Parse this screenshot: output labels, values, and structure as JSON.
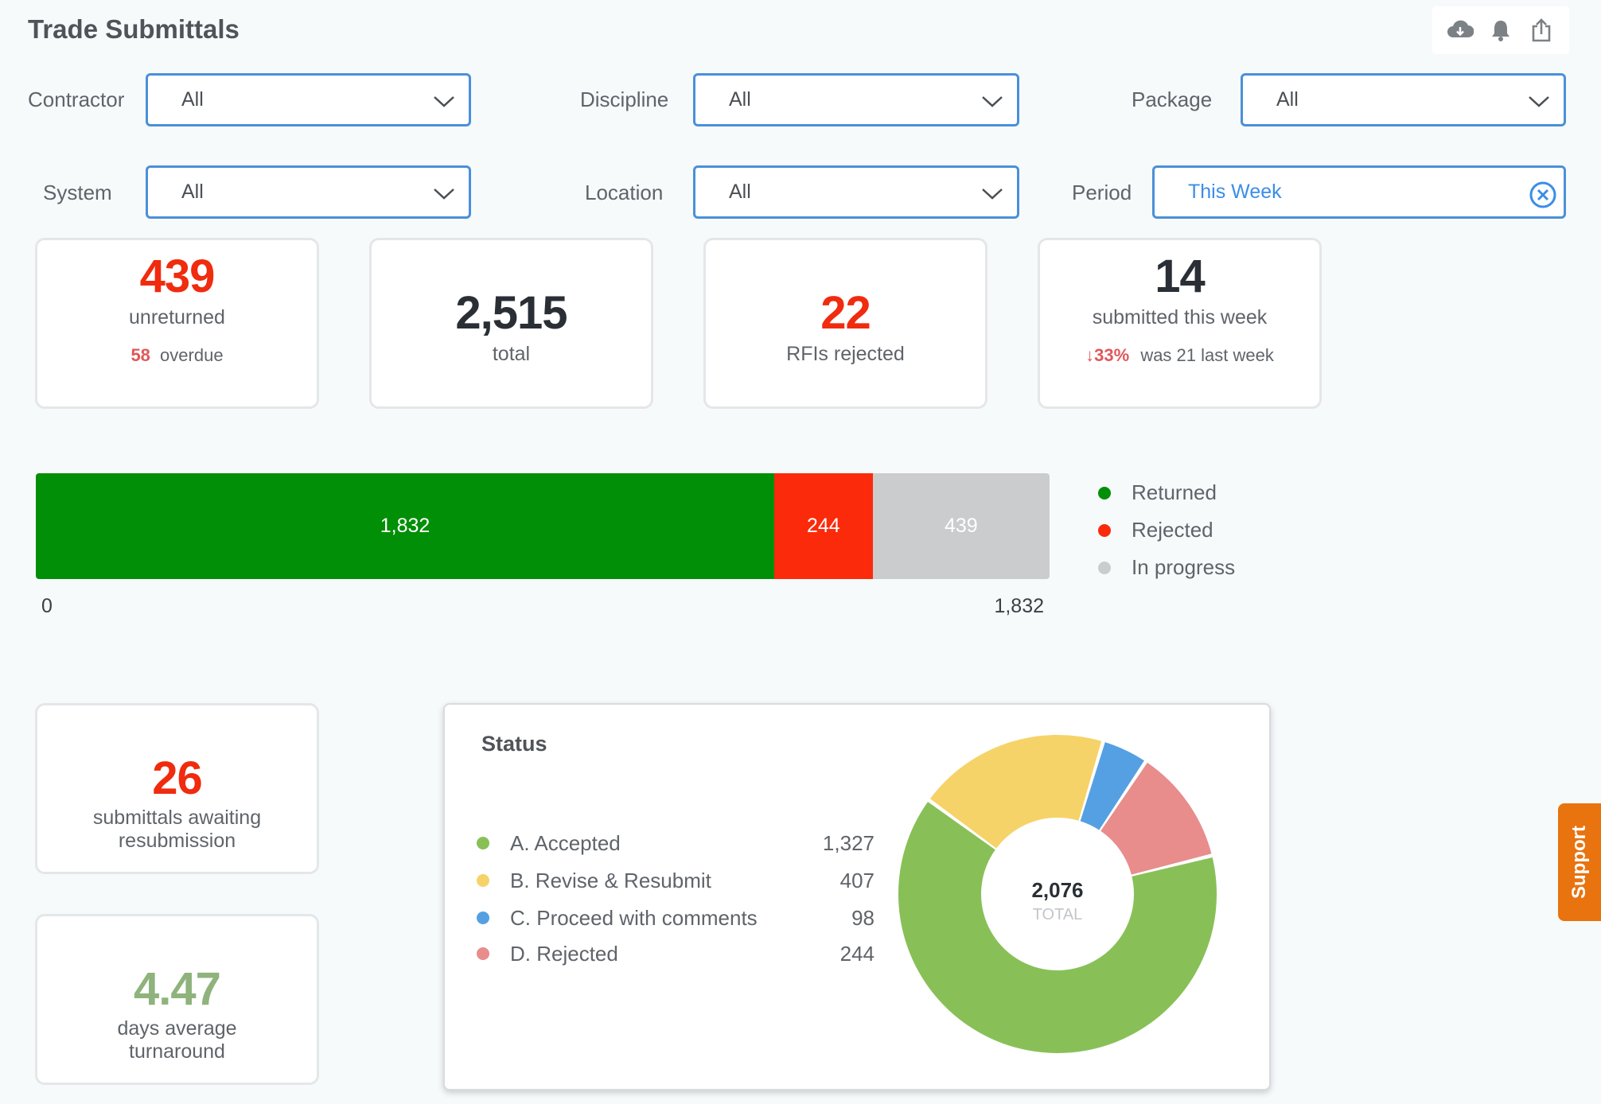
{
  "page": {
    "title": "Trade Submittals"
  },
  "actions": {
    "download": "download-cloud-icon",
    "alerts": "bell-icon",
    "share": "share-icon"
  },
  "filters": {
    "contractor": {
      "label": "Contractor",
      "value": "All"
    },
    "discipline": {
      "label": "Discipline",
      "value": "All"
    },
    "package": {
      "label": "Package",
      "value": "All"
    },
    "system": {
      "label": "System",
      "value": "All"
    },
    "location": {
      "label": "Location",
      "value": "All"
    },
    "period": {
      "label": "Period",
      "value": "This Week"
    }
  },
  "kpis": {
    "unreturned": {
      "value": "439",
      "label": "unreturned",
      "overdue_count": "58",
      "overdue_label": "overdue"
    },
    "total": {
      "value": "2,515",
      "label": "total"
    },
    "rfis_rejected": {
      "value": "22",
      "label": "RFIs rejected"
    },
    "submitted": {
      "value": "14",
      "label": "submitted this week",
      "change": "33%",
      "comparison": "was 21 last week"
    },
    "awaiting": {
      "value": "26",
      "label_line1": "submittals awaiting",
      "label_line2": "resubmission"
    },
    "turnaround": {
      "value": "4.47",
      "label_line1": "days average",
      "label_line2": "turnaround"
    }
  },
  "progress_bar": {
    "axis_min": "0",
    "axis_max": "1,832",
    "segments": [
      {
        "name": "Returned",
        "label": "1,832",
        "value": 1832,
        "color": "#008f06"
      },
      {
        "name": "Rejected",
        "label": "244",
        "value": 244,
        "color": "#fb2a0a"
      },
      {
        "name": "In progress",
        "label": "439",
        "value": 439,
        "color": "#cbcccd"
      }
    ]
  },
  "status": {
    "title": "Status",
    "center_value": "2,076",
    "center_label": "TOTAL"
  },
  "chart_data": {
    "type": "pie",
    "title": "Status",
    "categories": [
      "A. Accepted",
      "B. Revise & Resubmit",
      "C. Proceed with comments",
      "D. Rejected"
    ],
    "labels": [
      "1,327",
      "407",
      "98",
      "244"
    ],
    "values": [
      1327,
      407,
      98,
      244
    ],
    "colors": [
      "#88c057",
      "#f6d368",
      "#55a0e2",
      "#e88c8c"
    ],
    "total": 2076
  },
  "support": {
    "label": "Support"
  }
}
